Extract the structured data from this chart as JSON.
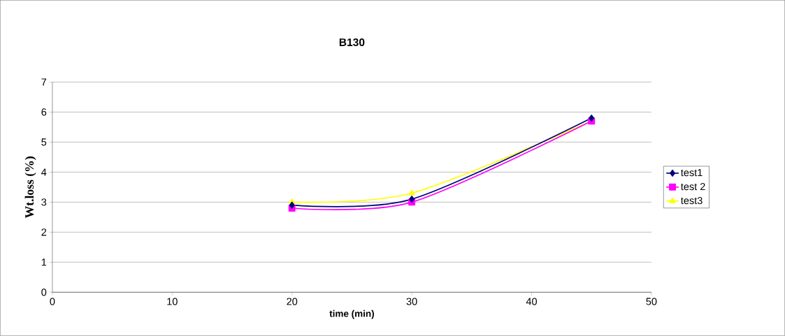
{
  "chart_data": {
    "type": "line",
    "title": "B130",
    "xlabel": "time (min)",
    "ylabel": "Wt.loss (%)",
    "x": [
      20,
      30,
      45
    ],
    "series": [
      {
        "name": "test1",
        "color": "#000080",
        "marker": "diamond",
        "values": [
          2.9,
          3.1,
          5.8
        ]
      },
      {
        "name": "test 2",
        "color": "#ff00ff",
        "marker": "square",
        "values": [
          2.8,
          3.0,
          5.7
        ]
      },
      {
        "name": "test3",
        "color": "#ffff00",
        "marker": "triangle",
        "values": [
          3.0,
          3.3,
          5.7
        ]
      }
    ],
    "xlim": [
      0,
      50
    ],
    "xticks": [
      0,
      10,
      20,
      30,
      40,
      50
    ],
    "ylim": [
      0,
      7
    ],
    "yticks": [
      0,
      1,
      2,
      3,
      4,
      5,
      6,
      7
    ],
    "grid": "y",
    "legend": "right",
    "line_style": "solid"
  }
}
